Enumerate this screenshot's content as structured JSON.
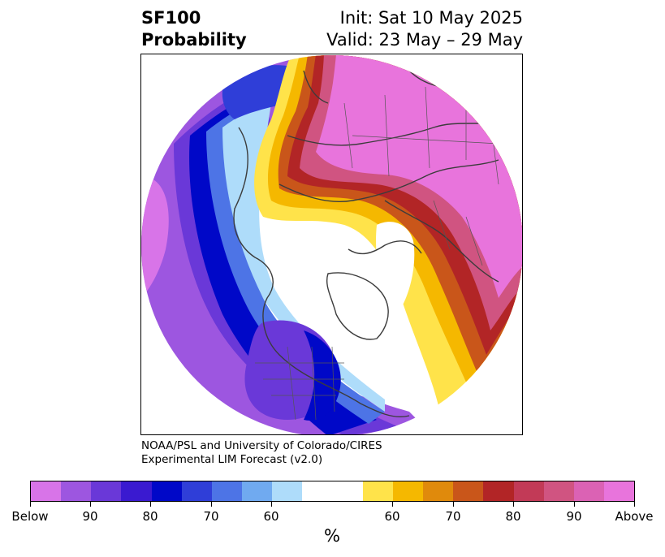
{
  "header": {
    "title_line1": "SF100",
    "title_line2": "Probability",
    "init": "Init: Sat 10 May 2025",
    "valid": "Valid: 23 May – 29 May"
  },
  "credit": {
    "line1": "NOAA/PSL and University of Colorado/CIRES",
    "line2": "Experimental LIM Forecast (v2.0)"
  },
  "colorbar": {
    "unit": "%",
    "colors": [
      "#d874e8",
      "#9d56e0",
      "#6a38d8",
      "#3a1ad0",
      "#0008c8",
      "#2f3ed8",
      "#4d74e6",
      "#70aaf0",
      "#aedcfa",
      "#ffffff",
      "#ffffff",
      "#ffe34a",
      "#f5b800",
      "#e08a0c",
      "#c9561a",
      "#b22526",
      "#c23a57",
      "#d05481",
      "#db62b4",
      "#e874dc"
    ],
    "tick_labels": [
      "Below",
      "90",
      "80",
      "70",
      "60",
      "60",
      "70",
      "80",
      "90",
      "Above"
    ]
  },
  "map_legend": {
    "below_colors": [
      "#d874e8",
      "#9d56e0",
      "#6a38d8",
      "#0008c8",
      "#4d74e6",
      "#aedcfa"
    ],
    "above_colors": [
      "#ffe34a",
      "#f5b800",
      "#c9561a",
      "#b22526",
      "#d05481",
      "#e874dc"
    ]
  }
}
